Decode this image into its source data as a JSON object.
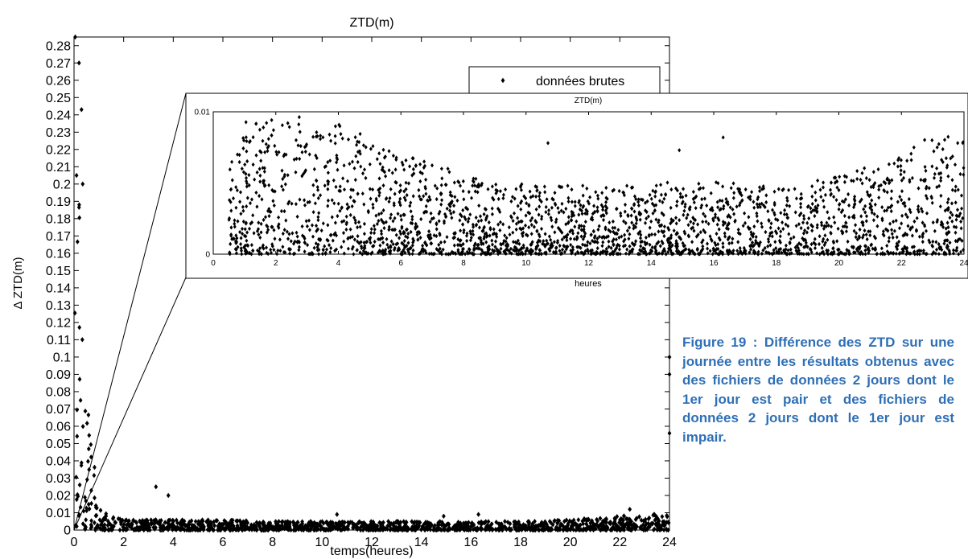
{
  "caption": "Figure 19 : Différence des ZTD sur une journée entre les résultats obtenus avec des fichiers de données 2 jours dont le 1er jour est pair et des fichiers de données 2 jours dont le 1er jour est impair.",
  "colors": {
    "caption": "#2f6fb5",
    "marker": "#000000",
    "axes": "#000000"
  },
  "chart_data": [
    {
      "type": "scatter",
      "title": "ZTD(m)",
      "xlabel": "temps(heures)",
      "ylabel": "Δ ZTD(m)",
      "xlim": [
        0,
        24
      ],
      "ylim": [
        0,
        0.285
      ],
      "xticks": [
        "0",
        "2",
        "4",
        "6",
        "8",
        "10",
        "12",
        "14",
        "16",
        "18",
        "20",
        "22",
        "24"
      ],
      "yticks": [
        "0",
        "0.01",
        "0.02",
        "0.03",
        "0.04",
        "0.05",
        "0.06",
        "0.07",
        "0.08",
        "0.09",
        "0.1",
        "0.11",
        "0.12",
        "0.13",
        "0.14",
        "0.15",
        "0.16",
        "0.17",
        "0.18",
        "0.19",
        "0.2",
        "0.21",
        "0.22",
        "0.23",
        "0.24",
        "0.25",
        "0.26",
        "0.27",
        "0.28"
      ],
      "legend": {
        "label": "données brutes",
        "placement": "top-right",
        "marker": "diamond"
      },
      "series": [
        {
          "name": "données brutes",
          "envelope": [
            [
              0,
              0.285
            ],
            [
              0.2,
              0.21
            ],
            [
              0.4,
              0.15
            ],
            [
              0.6,
              0.06
            ],
            [
              0.8,
              0.04
            ],
            [
              1,
              0.012
            ],
            [
              1.5,
              0.008
            ],
            [
              2,
              0.006
            ],
            [
              3,
              0.006
            ],
            [
              4,
              0.006
            ],
            [
              6,
              0.006
            ],
            [
              8,
              0.005
            ],
            [
              10,
              0.005
            ],
            [
              12,
              0.005
            ],
            [
              14,
              0.005
            ],
            [
              16,
              0.005
            ],
            [
              18,
              0.005
            ],
            [
              20,
              0.006
            ],
            [
              22,
              0.008
            ],
            [
              24,
              0.01
            ]
          ],
          "notable_points": [
            [
              0.05,
              0.285
            ],
            [
              0.2,
              0.27
            ],
            [
              0.3,
              0.243
            ],
            [
              0.1,
              0.205
            ],
            [
              0.35,
              0.2
            ],
            [
              3.3,
              0.025
            ],
            [
              3.8,
              0.02
            ],
            [
              10.6,
              0.009
            ],
            [
              14.9,
              0.008
            ],
            [
              16.3,
              0.009
            ],
            [
              22.4,
              0.012
            ],
            [
              24,
              0.1
            ],
            [
              24,
              0.09
            ],
            [
              24,
              0.056
            ]
          ]
        }
      ],
      "grid": false
    },
    {
      "type": "scatter",
      "title": "ZTD(m)",
      "xlabel": "heures",
      "ylabel": "",
      "xlim": [
        0,
        24
      ],
      "ylim": [
        0,
        0.01
      ],
      "xticks": [
        "0",
        "2",
        "4",
        "6",
        "8",
        "10",
        "12",
        "14",
        "16",
        "18",
        "20",
        "22",
        "24"
      ],
      "yticks": [
        "0",
        "0.01"
      ],
      "series": [
        {
          "name": "",
          "envelope": [
            [
              0.5,
              0.006
            ],
            [
              1,
              0.0095
            ],
            [
              1.5,
              0.01
            ],
            [
              2,
              0.0095
            ],
            [
              3,
              0.01
            ],
            [
              4,
              0.0095
            ],
            [
              5,
              0.008
            ],
            [
              6,
              0.007
            ],
            [
              7,
              0.0065
            ],
            [
              8,
              0.0055
            ],
            [
              10,
              0.005
            ],
            [
              12,
              0.0048
            ],
            [
              14,
              0.005
            ],
            [
              16,
              0.0052
            ],
            [
              18,
              0.0048
            ],
            [
              20,
              0.0055
            ],
            [
              22,
              0.007
            ],
            [
              23,
              0.0085
            ],
            [
              24,
              0.008
            ]
          ],
          "notable_points": [
            [
              10.7,
              0.0078
            ],
            [
              14.9,
              0.0073
            ],
            [
              16.3,
              0.0082
            ],
            [
              18.2,
              0.0045
            ],
            [
              22.4,
              0.0075
            ],
            [
              23.8,
              0.0078
            ]
          ]
        }
      ],
      "grid": false
    }
  ]
}
